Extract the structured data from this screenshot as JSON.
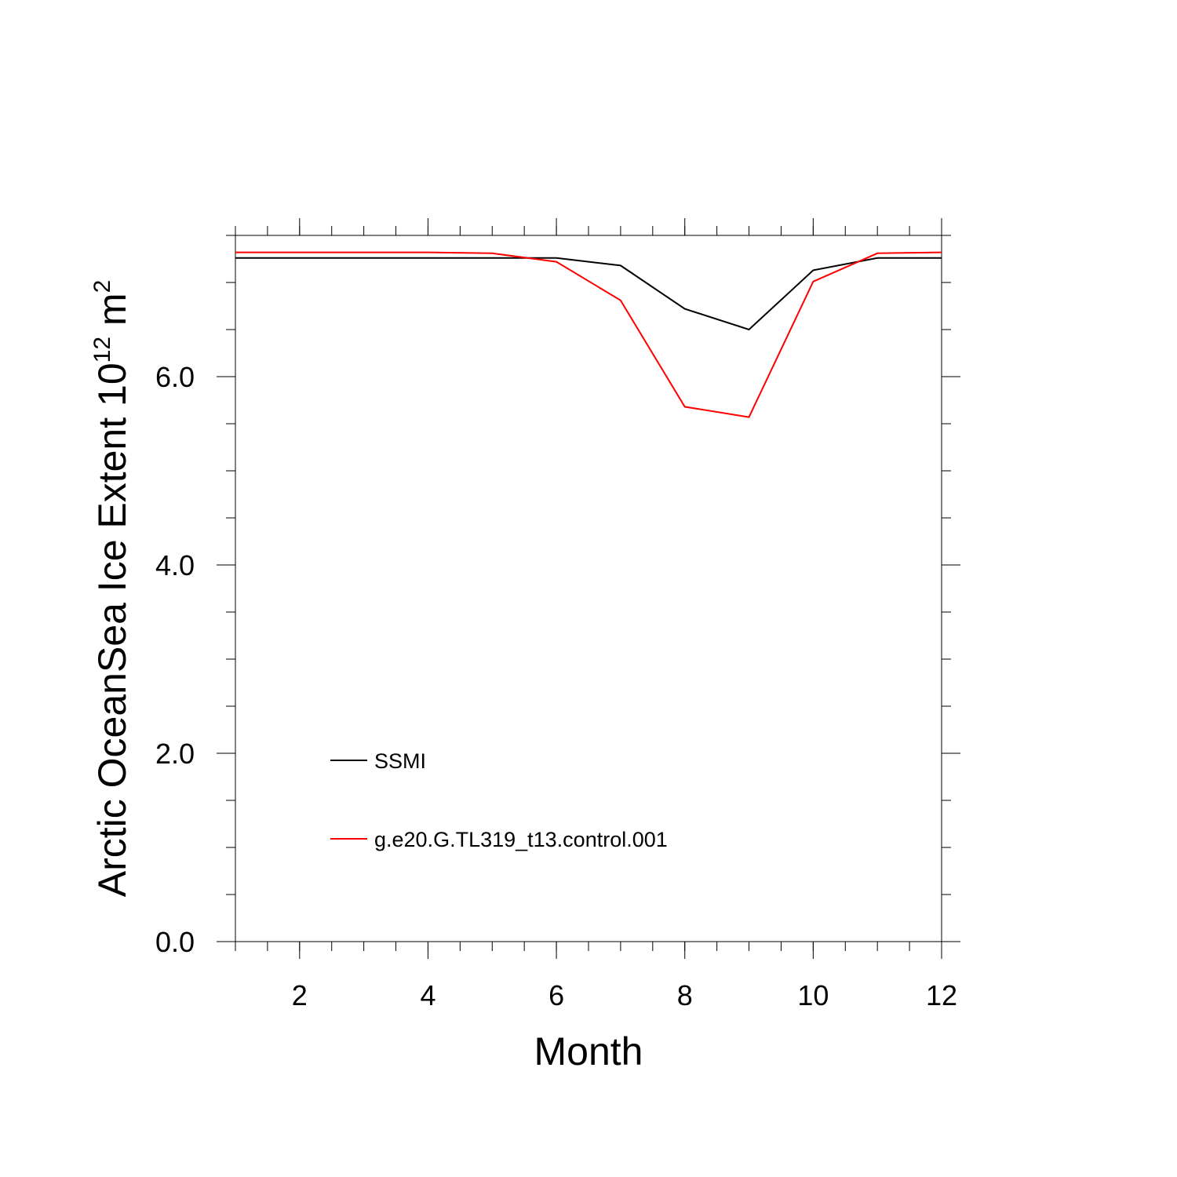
{
  "chart_data": {
    "type": "line",
    "xlabel": "Month",
    "ylabel": {
      "main": "Arctic OceanSea Ice Extent 10",
      "exp1": "12",
      "unit": " m",
      "exp2": "2"
    },
    "xlim": [
      1,
      12
    ],
    "ylim": [
      0,
      7.5
    ],
    "xticks": [
      2,
      4,
      6,
      8,
      10,
      12
    ],
    "xtick_labels": [
      "2",
      "4",
      "6",
      "8",
      "10",
      "12"
    ],
    "yticks": [
      0,
      2,
      4,
      6
    ],
    "ytick_labels": [
      "0.0",
      "2.0",
      "4.0",
      "6.0"
    ],
    "grid": false,
    "legend_position": "lower-left",
    "series": [
      {
        "name": "SSMI",
        "color": "#000000",
        "x": [
          1,
          2,
          3,
          4,
          5,
          6,
          7,
          8,
          9,
          10,
          11,
          12
        ],
        "y": [
          7.26,
          7.26,
          7.26,
          7.26,
          7.26,
          7.26,
          7.18,
          6.72,
          6.5,
          7.13,
          7.26,
          7.26
        ]
      },
      {
        "name": "g.e20.G.TL319_t13.control.001",
        "color": "#ff0000",
        "x": [
          1,
          2,
          3,
          4,
          5,
          6,
          7,
          8,
          9,
          10,
          11,
          12
        ],
        "y": [
          7.32,
          7.32,
          7.32,
          7.32,
          7.31,
          7.22,
          6.81,
          5.68,
          5.57,
          7.01,
          7.31,
          7.32
        ]
      }
    ]
  }
}
